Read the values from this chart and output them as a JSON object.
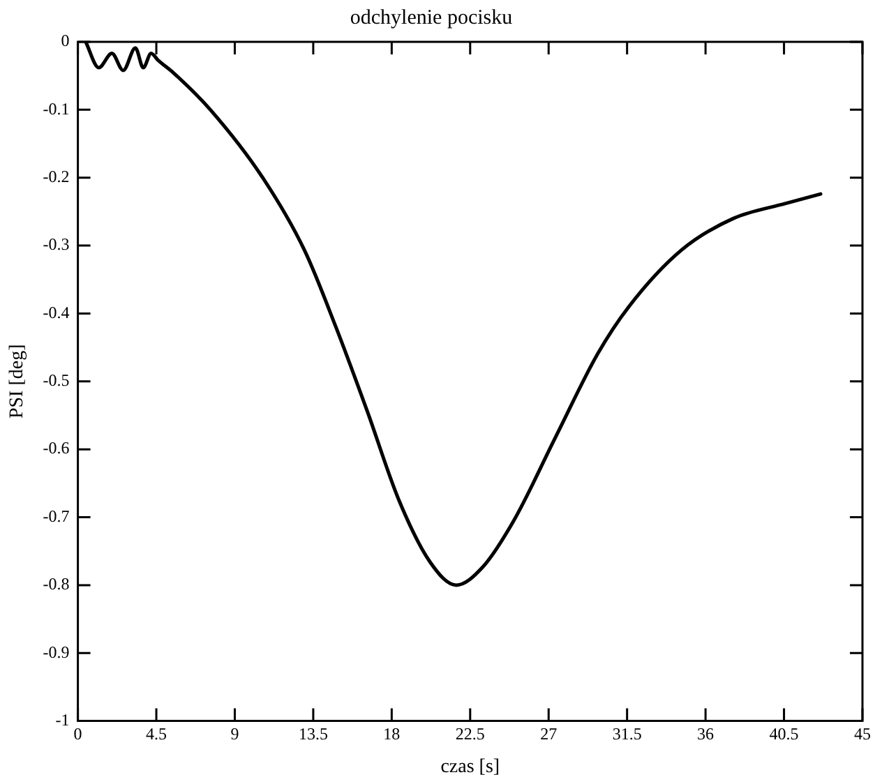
{
  "chart_data": {
    "type": "line",
    "title": "odchylenie pocisku",
    "xlabel": "czas [s]",
    "ylabel": "PSI [deg]",
    "xlim": [
      0,
      45
    ],
    "ylim": [
      -1,
      0
    ],
    "xticks": [
      0,
      4.5,
      9,
      13.5,
      18,
      22.5,
      27,
      31.5,
      36,
      40.5,
      45
    ],
    "yticks": [
      {
        "value": -1,
        "label": "-1"
      },
      {
        "value": -0.9,
        "label": "-0.9"
      },
      {
        "value": -0.8,
        "label": "-0.8"
      },
      {
        "value": -0.7,
        "label": "-0.7"
      },
      {
        "value": -0.6,
        "label": "-0.6"
      },
      {
        "value": -0.5,
        "label": "-0.5"
      },
      {
        "value": -0.4,
        "label": "-0.4"
      },
      {
        "value": -0.3,
        "label": "-0.3"
      },
      {
        "value": -0.2,
        "label": "-0.2"
      },
      {
        "value": -0.1,
        "label": "-0.1"
      },
      0
    ],
    "grid": false,
    "legend": false,
    "marker": "none",
    "line_style": "solid",
    "series": [
      {
        "color": "#000000",
        "x": [
          0.45,
          1.2,
          1.95,
          2.6,
          3.3,
          3.75,
          4.2,
          4.6,
          5.5,
          7.6,
          10.6,
          13.0,
          14.8,
          16.6,
          18.4,
          20.2,
          21.7,
          23.2,
          25.0,
          27.4,
          29.8,
          31.6,
          34.6,
          37.6,
          40.6,
          42.6
        ],
        "values": [
          0,
          -0.038,
          -0.017,
          -0.042,
          -0.009,
          -0.038,
          -0.017,
          -0.027,
          -0.046,
          -0.1,
          -0.2,
          -0.307,
          -0.42,
          -0.544,
          -0.674,
          -0.766,
          -0.8,
          -0.774,
          -0.705,
          -0.582,
          -0.46,
          -0.39,
          -0.307,
          -0.26,
          -0.238,
          -0.224
        ]
      }
    ]
  }
}
